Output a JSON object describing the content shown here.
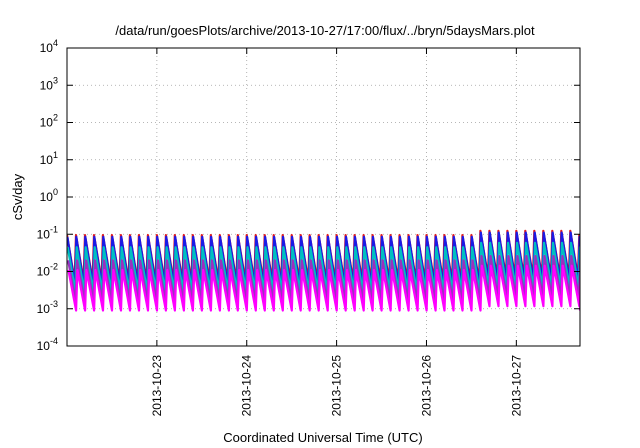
{
  "chart_data": {
    "type": "line",
    "title": "/data/run/goesPlots/archive/2013-10-27/17:00/flux/../bryn/5daysMars.plot",
    "xlabel": "Coordinated Universal Time (UTC)",
    "ylabel": "cSv/day",
    "yscale": "log",
    "ylim": [
      0.0001,
      10000
    ],
    "y_ticks": [
      {
        "value": 0.0001,
        "base": "10",
        "exp": "-4"
      },
      {
        "value": 0.001,
        "base": "10",
        "exp": "-3"
      },
      {
        "value": 0.01,
        "base": "10",
        "exp": "-2"
      },
      {
        "value": 0.1,
        "base": "10",
        "exp": "-1"
      },
      {
        "value": 1,
        "base": "10",
        "exp": "0"
      },
      {
        "value": 10,
        "base": "10",
        "exp": "1"
      },
      {
        "value": 100,
        "base": "10",
        "exp": "2"
      },
      {
        "value": 1000,
        "base": "10",
        "exp": "3"
      },
      {
        "value": 10000,
        "base": "10",
        "exp": "4"
      }
    ],
    "xlim": [
      "2013-10-22T00:00",
      "2013-10-27T17:00"
    ],
    "x_ticks": [
      "2013-10-23",
      "2013-10-24",
      "2013-10-25",
      "2013-10-26",
      "2013-10-27"
    ],
    "grid": true,
    "legend": "none",
    "series": [
      {
        "color": "#e41a1c",
        "peak": 0.095,
        "trough": 0.0058
      },
      {
        "color": "#1a1ae6",
        "peak": 0.085,
        "trough": 0.0042
      },
      {
        "color": "#00c0c0",
        "peak": 0.045,
        "trough": 0.0028
      },
      {
        "color": "#9a30c0",
        "peak": 0.02,
        "trough": 0.0016
      },
      {
        "color": "#ff00ff",
        "peak": 0.011,
        "trough": 0.0009
      }
    ],
    "series_pattern": {
      "shape": "sawtooth",
      "period_hours": 2.4,
      "enhanced_window": [
        "2013-10-26T14:00",
        "2013-10-27T17:00"
      ],
      "enhanced_factor": 1.3
    }
  }
}
